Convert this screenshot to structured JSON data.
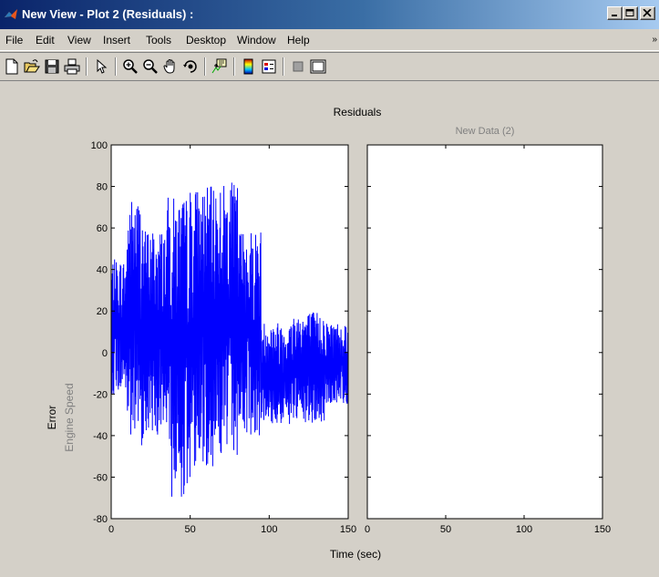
{
  "window": {
    "title": "New View - Plot 2 (Residuals) :",
    "controls": {
      "minimize_icon": "minimize-icon",
      "maximize_icon": "maximize-icon",
      "close_icon": "close-icon"
    }
  },
  "menu": {
    "items": [
      "File",
      "Edit",
      "View",
      "Insert",
      "Tools",
      "Desktop",
      "Window",
      "Help"
    ],
    "overflow": "»"
  },
  "toolbar": {
    "buttons": [
      "new-figure-icon",
      "open-file-icon",
      "save-icon",
      "print-icon",
      "edit-plot-arrow-icon",
      "zoom-in-icon",
      "zoom-out-icon",
      "pan-hand-icon",
      "rotate-3d-icon",
      "data-cursor-icon",
      "colorbar-icon",
      "legend-icon",
      "hide-plot-tools-icon",
      "show-plot-tools-icon"
    ]
  },
  "figure": {
    "suptitle": "Residuals",
    "ylabel_main": "Error",
    "ylabel_sub": "Engine Speed",
    "xlabel": "Time (sec)"
  },
  "chart_data": [
    {
      "type": "line",
      "title": "",
      "xlabel": "Time (sec)",
      "ylabel": "Error",
      "xlim": [
        0,
        150
      ],
      "ylim": [
        -80,
        100
      ],
      "xticks": [
        "0",
        "50",
        "100",
        "150"
      ],
      "yticks": [
        "100",
        "80",
        "60",
        "40",
        "20",
        "0",
        "-20",
        "-40",
        "-60",
        "-80"
      ],
      "grid": false,
      "color": "#0000ff",
      "series": [
        {
          "segments": [
            {
              "t": [
                0,
                10
              ],
              "low": -20,
              "high": 45
            },
            {
              "t": [
                10,
                20
              ],
              "low": -45,
              "high": 75
            },
            {
              "t": [
                20,
                35
              ],
              "low": -40,
              "high": 60
            },
            {
              "t": [
                35,
                50
              ],
              "low": -70,
              "high": 75
            },
            {
              "t": [
                50,
                65
              ],
              "low": -55,
              "high": 80
            },
            {
              "t": [
                65,
                80
              ],
              "low": -50,
              "high": 82
            },
            {
              "t": [
                80,
                95
              ],
              "low": -40,
              "high": 60
            },
            {
              "t": [
                95,
                115
              ],
              "low": -35,
              "high": 15
            },
            {
              "t": [
                115,
                135
              ],
              "low": -35,
              "high": 20
            },
            {
              "t": [
                135,
                150
              ],
              "low": -25,
              "high": 15
            }
          ]
        }
      ]
    },
    {
      "type": "line",
      "title": "New Data (2)",
      "xlim": [
        0,
        150
      ],
      "ylim": [
        -80,
        100
      ],
      "xticks": [
        "0",
        "50",
        "100",
        "150"
      ],
      "grid": false,
      "series": []
    }
  ]
}
